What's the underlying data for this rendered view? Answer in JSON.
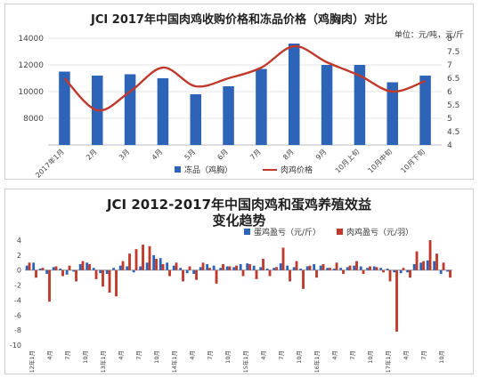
{
  "chart_data": [
    {
      "type": "bar+line",
      "title": "JCI 2017年中国肉鸡收购价格和冻品价格（鸡胸肉）对比",
      "unit_label": "单位：元/吨，元/斤",
      "categories": [
        "2017年1月",
        "2月",
        "3月",
        "4月",
        "5月",
        "6月",
        "7月",
        "8月",
        "9月",
        "10月上旬",
        "10月中旬",
        "10月下旬"
      ],
      "series": [
        {
          "name": "冻品（鸡胸）",
          "axis": "left",
          "values": [
            11500,
            11200,
            11300,
            11000,
            9800,
            10400,
            11700,
            13600,
            12000,
            12000,
            10700,
            11200
          ]
        },
        {
          "name": "肉鸡价格",
          "axis": "right",
          "values": [
            6.5,
            5.3,
            6.0,
            6.9,
            6.2,
            6.5,
            6.9,
            7.7,
            7.1,
            6.6,
            6.0,
            6.4
          ]
        }
      ],
      "ylim_left": [
        6000,
        14000
      ],
      "yticks_left": [
        8000,
        10000,
        12000,
        14000
      ],
      "ylim_right": [
        4,
        8
      ],
      "yticks_right": [
        4,
        4.5,
        5,
        5.5,
        6,
        6.5,
        7,
        7.5,
        8
      ],
      "legend": "bottom",
      "colors": {
        "bar": "#2e64b8",
        "line": "#c0392b"
      }
    },
    {
      "type": "bar",
      "title_line1": "JCI 2012-2017年中国肉鸡和蛋鸡养殖效益",
      "title_line2": "变化趋势",
      "legend": "top-right",
      "ylim": [
        -10,
        4
      ],
      "yticks": [
        4,
        2,
        0,
        -2,
        -4,
        -6,
        -8,
        -10
      ],
      "x_tick_labels": [
        "2012年1月",
        "4月",
        "7月",
        "10月",
        "2013年1月",
        "4月",
        "7月",
        "10月",
        "2014年1月",
        "4月",
        "7月",
        "10月",
        "2015年1月",
        "4月",
        "7月",
        "10月",
        "2016年1月",
        "4月",
        "7月",
        "10月",
        "2017年1月",
        "4月",
        "7月",
        "10月"
      ],
      "series": [
        {
          "name": "蛋鸡盈亏（元/斤）",
          "color": "#2e64b8",
          "values": [
            0.6,
            1.0,
            0.2,
            -0.5,
            0.4,
            0.2,
            -0.6,
            -0.2,
            0.8,
            1.0,
            0.3,
            -0.4,
            -0.5,
            0.3,
            0.6,
            0.5,
            -0.3,
            0.5,
            1.0,
            2.0,
            1.6,
            1.0,
            0.6,
            0.3,
            -0.4,
            -0.5,
            0.4,
            0.8,
            0.6,
            0.3,
            0.5,
            0.4,
            0.8,
            0.9,
            0.6,
            0.4,
            0.2,
            0.3,
            0.9,
            0.6,
            0.4,
            0.2,
            0.5,
            0.8,
            0.6,
            0.3,
            0.2,
            0.3,
            0.4,
            0.6,
            0.5,
            0.3,
            0.5,
            0.3,
            0.2,
            -0.3,
            -0.4,
            -0.3,
            0.8,
            1.0,
            1.3,
            1.2,
            -0.5,
            -0.2
          ]
        },
        {
          "name": "肉鸡盈亏（元/羽）",
          "color": "#c0392b",
          "values": [
            1.0,
            -1.0,
            0.3,
            -4.2,
            0.5,
            -0.8,
            0.6,
            -1.5,
            1.2,
            0.8,
            -1.2,
            -2.2,
            -3.0,
            -3.5,
            1.2,
            2.2,
            2.8,
            3.4,
            3.2,
            1.5,
            0.8,
            -0.8,
            1.0,
            -1.5,
            0.5,
            -1.3,
            1.0,
            0.3,
            -1.8,
            0.8,
            0.5,
            0.6,
            -0.8,
            0.8,
            -1.2,
            1.5,
            -0.8,
            0.4,
            3.0,
            -1.5,
            1.2,
            -2.5,
            0.6,
            -1.0,
            0.8,
            0.3,
            1.0,
            -0.5,
            0.6,
            1.2,
            -0.5,
            0.5,
            0.4,
            -0.3,
            -1.5,
            -8.2,
            0.3,
            -1.0,
            2.5,
            1.2,
            4.0,
            2.2,
            1.0,
            -1.0
          ]
        }
      ],
      "colors": {
        "blue": "#2e64b8",
        "red": "#c0392b"
      }
    }
  ]
}
